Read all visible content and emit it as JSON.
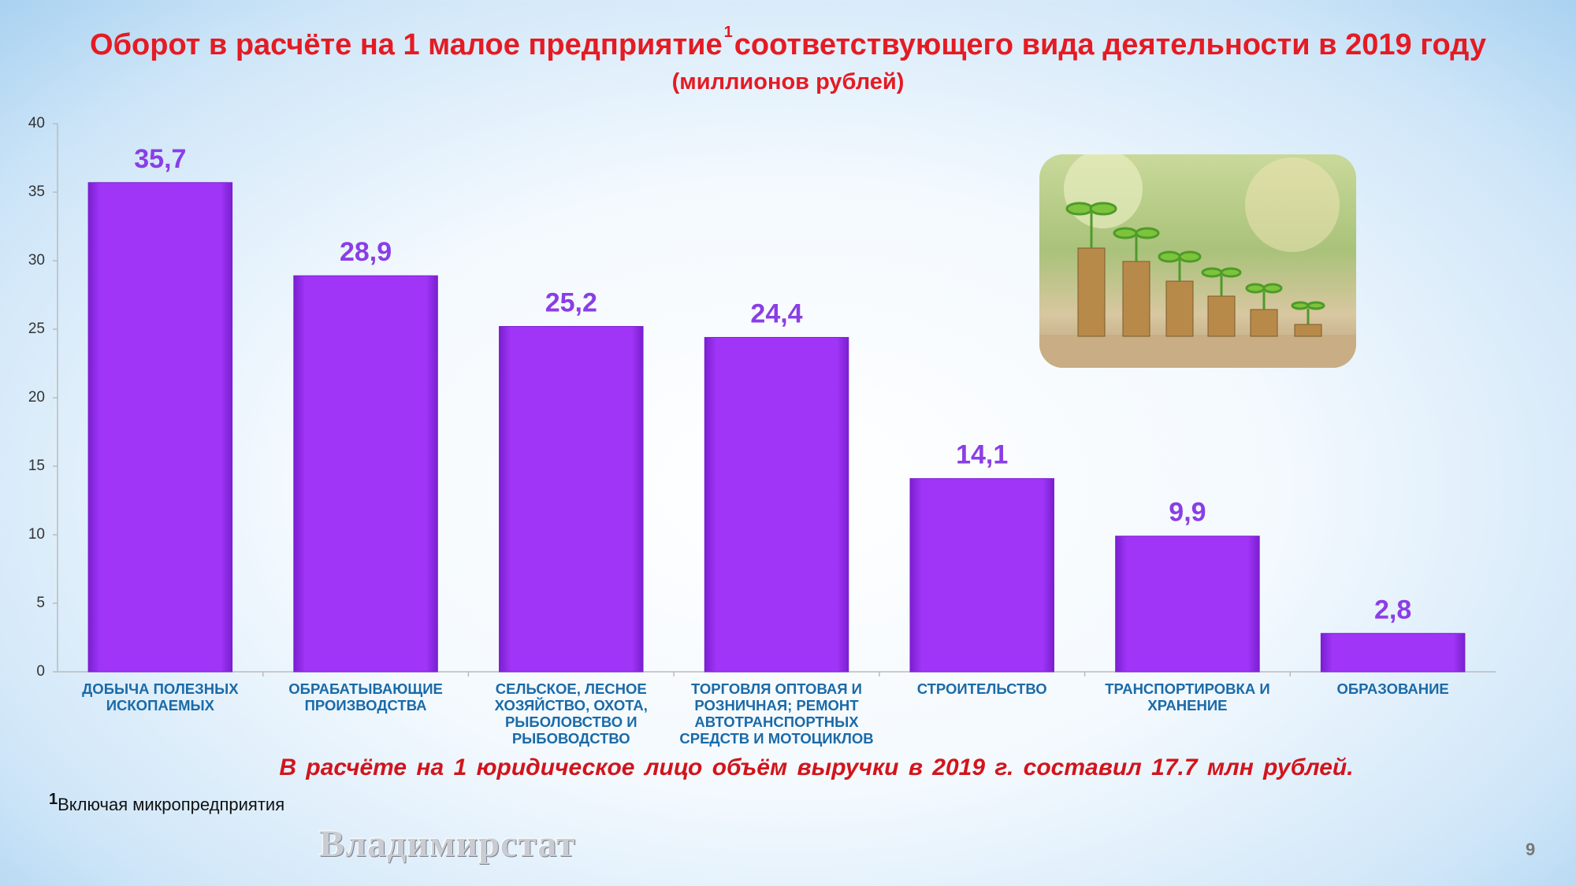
{
  "chart_data": {
    "type": "bar",
    "title": "Оборот в расчёте на 1 малое предприятие",
    "title_superscript": "1",
    "title_rest": "соответствующего вида деятельности в 2019 году",
    "subtitle": "(миллионов  рублей)",
    "categories": [
      "ДОБЫЧА ПОЛЕЗНЫХ ИСКОПАЕМЫХ",
      "ОБРАБАТЫВАЮЩИЕ ПРОИЗВОДСТВА",
      "СЕЛЬСКОЕ, ЛЕСНОЕ ХОЗЯЙСТВО, ОХОТА, РЫБОЛОВСТВО И РЫБОВОДСТВО",
      "ТОРГОВЛЯ ОПТОВАЯ И РОЗНИЧНАЯ; РЕМОНТ АВТОТРАНСПОРТНЫХ СРЕДСТВ И МОТОЦИКЛОВ",
      "СТРОИТЕЛЬСТВО",
      "ТРАНСПОРТИРОВКА И ХРАНЕНИЕ",
      "ОБРАЗОВАНИЕ"
    ],
    "values": [
      35.7,
      28.9,
      25.2,
      24.4,
      14.1,
      9.9,
      2.8
    ],
    "value_labels": [
      "35,7",
      "28,9",
      "25,2",
      "24,4",
      "14,1",
      "9,9",
      "2,8"
    ],
    "color": "#a035f7",
    "ylim": [
      0,
      40
    ],
    "yticks": [
      0,
      5,
      10,
      15,
      20,
      25,
      30,
      35,
      40
    ],
    "note": "В расчёте на 1 юридическое лицо объём выручки в 2019 г. составил 17.7 млн рублей.",
    "footnote_marker": "1",
    "footnote": "Включая микропредприятия"
  },
  "watermark": "Владимирстат",
  "page_number": "9"
}
